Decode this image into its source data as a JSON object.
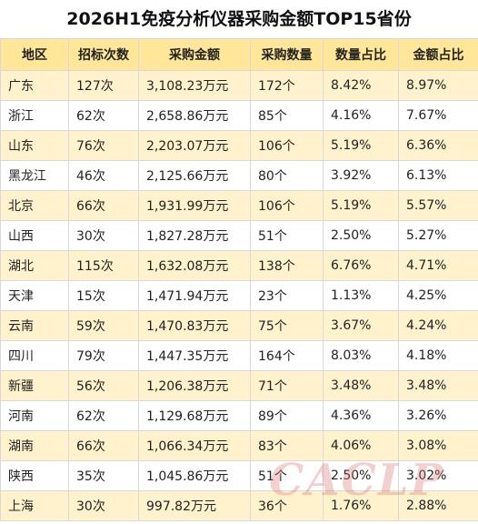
{
  "title": "2026H1免疫分析仪器采购金额TOP15省份",
  "table": {
    "headers": [
      "地区",
      "招标次数",
      "采购金额",
      "采购数量",
      "数量占比",
      "金额占比"
    ],
    "rows": [
      [
        "广东",
        "127次",
        "3,108.23万元",
        "172个",
        "8.42%",
        "8.97%"
      ],
      [
        "浙江",
        "62次",
        "2,658.86万元",
        "85个",
        "4.16%",
        "7.67%"
      ],
      [
        "山东",
        "76次",
        "2,203.07万元",
        "106个",
        "5.19%",
        "6.36%"
      ],
      [
        "黑龙江",
        "46次",
        "2,125.66万元",
        "80个",
        "3.92%",
        "6.13%"
      ],
      [
        "北京",
        "66次",
        "1,931.99万元",
        "106个",
        "5.19%",
        "5.57%"
      ],
      [
        "山西",
        "30次",
        "1,827.28万元",
        "51个",
        "2.50%",
        "5.27%"
      ],
      [
        "湖北",
        "115次",
        "1,632.08万元",
        "138个",
        "6.76%",
        "4.71%"
      ],
      [
        "天津",
        "15次",
        "1,471.94万元",
        "23个",
        "1.13%",
        "4.25%"
      ],
      [
        "云南",
        "59次",
        "1,470.83万元",
        "75个",
        "3.67%",
        "4.24%"
      ],
      [
        "四川",
        "79次",
        "1,447.35万元",
        "164个",
        "8.03%",
        "4.18%"
      ],
      [
        "新疆",
        "56次",
        "1,206.38万元",
        "71个",
        "3.48%",
        "3.48%"
      ],
      [
        "河南",
        "62次",
        "1,129.68万元",
        "89个",
        "4.36%",
        "3.26%"
      ],
      [
        "湖南",
        "66次",
        "1,066.34万元",
        "83个",
        "4.06%",
        "3.08%"
      ],
      [
        "陕西",
        "35次",
        "1,045.86万元",
        "51个",
        "2.50%",
        "3.02%"
      ],
      [
        "上海",
        "30次",
        "997.82万元",
        "36个",
        "1.76%",
        "2.88%"
      ]
    ]
  },
  "watermark": "CACLP"
}
